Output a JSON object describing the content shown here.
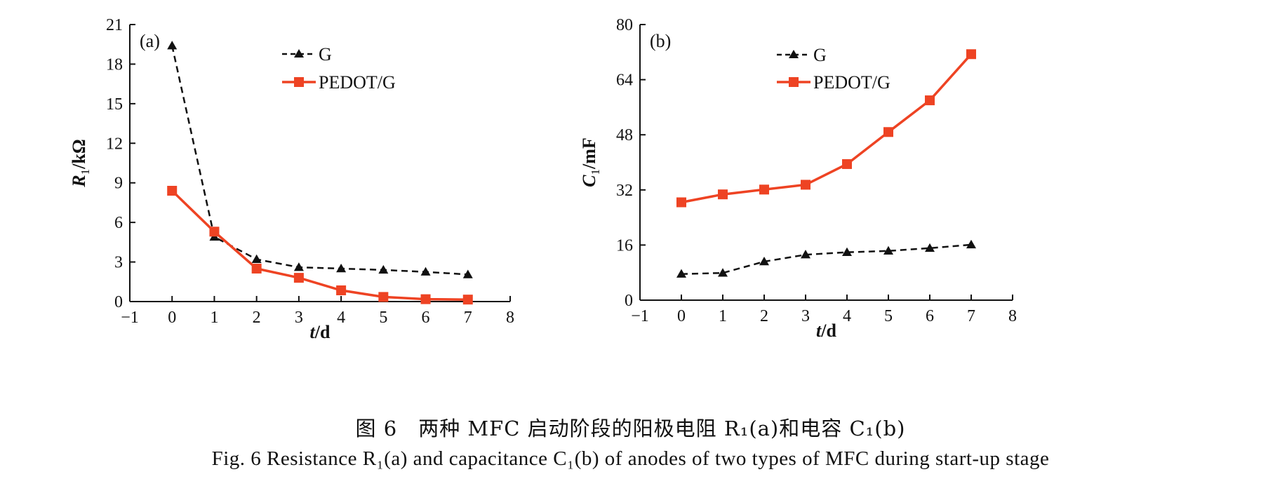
{
  "chart_data": [
    {
      "type": "line",
      "panel_label": "(a)",
      "x": [
        0,
        1,
        2,
        3,
        4,
        5,
        6,
        7
      ],
      "xlim": [
        -1,
        8
      ],
      "xticks": [
        "−1",
        "0",
        "1",
        "2",
        "3",
        "4",
        "5",
        "6",
        "7",
        "8"
      ],
      "ylim": [
        0,
        21
      ],
      "yticks": [
        "0",
        "3",
        "6",
        "9",
        "12",
        "15",
        "18",
        "21"
      ],
      "xlabel_main": "t",
      "xlabel_unit": "/d",
      "ylabel_main": "R",
      "ylabel_sub": "1",
      "ylabel_unit": "/kΩ",
      "legend_position": "top",
      "series": [
        {
          "name": "G",
          "style": "dashed",
          "marker": "triangle",
          "color": "#111111",
          "values": [
            19.4,
            4.9,
            3.2,
            2.6,
            2.5,
            2.4,
            2.25,
            2.05
          ]
        },
        {
          "name": "PEDOT/G",
          "style": "solid",
          "marker": "square",
          "color": "#ee4323",
          "values": [
            8.4,
            5.3,
            2.5,
            1.8,
            0.85,
            0.35,
            0.18,
            0.15
          ]
        }
      ]
    },
    {
      "type": "line",
      "panel_label": "(b)",
      "x": [
        0,
        1,
        2,
        3,
        4,
        5,
        6,
        7
      ],
      "xlim": [
        -1,
        8
      ],
      "xticks": [
        "−1",
        "0",
        "1",
        "2",
        "3",
        "4",
        "5",
        "6",
        "7",
        "8"
      ],
      "ylim": [
        0,
        80
      ],
      "yticks": [
        "0",
        "16",
        "32",
        "48",
        "64",
        "80"
      ],
      "xlabel_main": "t",
      "xlabel_unit": "/d",
      "ylabel_main": "C",
      "ylabel_sub": "1",
      "ylabel_unit": "/mF",
      "legend_position": "top",
      "series": [
        {
          "name": "G",
          "style": "dashed",
          "marker": "triangle",
          "color": "#111111",
          "values": [
            7.6,
            7.9,
            11.2,
            13.2,
            13.9,
            14.3,
            15.1,
            16.1
          ]
        },
        {
          "name": "PEDOT/G",
          "style": "solid",
          "marker": "square",
          "color": "#ee4323",
          "values": [
            28.4,
            30.7,
            32.1,
            33.5,
            39.5,
            48.8,
            58.0,
            71.4
          ]
        }
      ]
    }
  ],
  "caption": {
    "cn": "图 6　两种 MFC 启动阶段的阳极电阻 R₁(a)和电容 C₁(b)",
    "en": "Fig. 6  Resistance R₁(a) and capacitance C₁(b) of anodes of two types of MFC during start-up stage"
  }
}
